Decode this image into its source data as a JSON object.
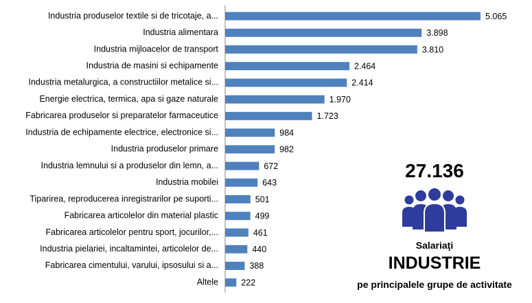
{
  "chart_data": {
    "type": "bar",
    "orientation": "horizontal",
    "categories": [
      "Industria produselor textile si de tricotaje, a...",
      "Industria alimentara",
      "Industria mijloacelor de transport",
      "Industria de masini si echipamente",
      "Industria metalurgica, a constructiilor metalice si...",
      "Energie electrica, termica, apa si gaze naturale",
      "Fabricarea produselor si preparatelor farmaceutice",
      "Industria de echipamente electrice, electronice si...",
      "Industria produselor primare",
      "Industria lemnului si a produselor din lemn, a...",
      "Industria mobilei",
      "Tiparirea, reproducerea inregistrarilor pe suporti...",
      "Fabricarea articolelor din material plastic",
      "Fabricarea articolelor pentru sport, jocurilor,...",
      "Industria pielariei, incaltamintei, articolelor de...",
      "Fabricarea cimentului, varului, ipsosului si a...",
      "Altele"
    ],
    "values": [
      5065,
      3898,
      3810,
      2464,
      2414,
      1970,
      1723,
      984,
      982,
      672,
      643,
      501,
      499,
      461,
      440,
      388,
      222
    ],
    "value_labels": [
      "5.065",
      "3.898",
      "3.810",
      "2.464",
      "2.414",
      "1.970",
      "1.723",
      "984",
      "982",
      "672",
      "643",
      "501",
      "499",
      "461",
      "440",
      "388",
      "222"
    ],
    "xlim": [
      0,
      5500
    ],
    "grid": false,
    "bar_color": "#4F81BD"
  },
  "summary": {
    "total": "27.136",
    "caption": "Salariaţi",
    "title": "INDUSTRIE",
    "subtitle": "pe principalele grupe de activitate",
    "icon": "people-group-icon",
    "icon_color": "#2E3C9E"
  }
}
